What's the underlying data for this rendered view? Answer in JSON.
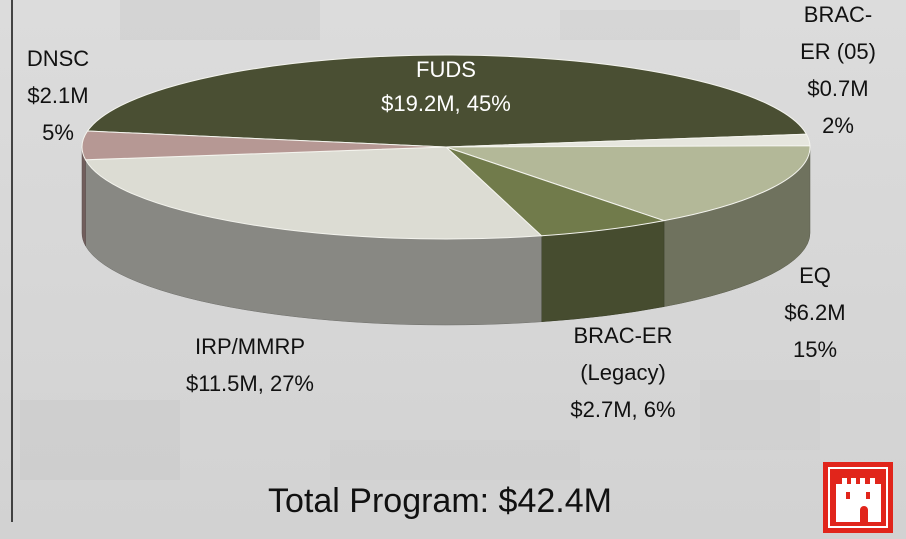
{
  "chart_data": {
    "type": "pie",
    "categories": [
      "FUDS",
      "BRAC-\nER (05)",
      "EQ",
      "BRAC-ER\n(Legacy)",
      "IRP/MMRP",
      "DNSC"
    ],
    "values": [
      45,
      2,
      15,
      6,
      27,
      5
    ],
    "value_labels": [
      "$19.2M, 45%",
      "$0.7M\n2%",
      "$6.2M\n15%",
      "$2.7M, 6%",
      "$11.5M, 27%",
      "$2.1M\n5%"
    ],
    "colors": [
      "#4a4f33",
      "#e6e6de",
      "#b3b898",
      "#717b4b",
      "#dcdcd3",
      "#b69894"
    ],
    "footer": "Total Program: $42.4M"
  }
}
